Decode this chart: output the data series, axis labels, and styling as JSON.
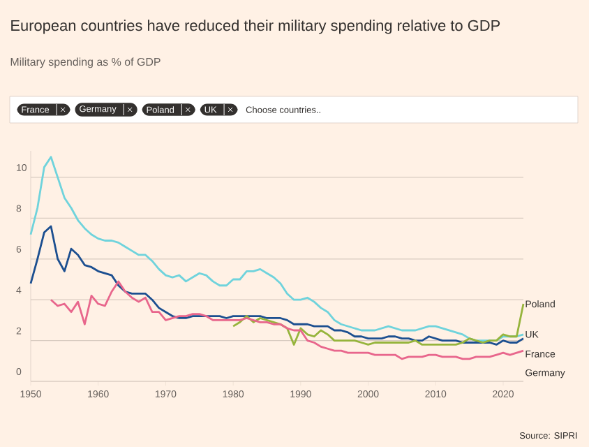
{
  "chart_data": {
    "type": "line",
    "title": "European countries have reduced their military spending relative to GDP",
    "subtitle": "Military spending as % of GDP",
    "annotations": [
      "France",
      "Germany",
      "Poland",
      "UK",
      "Choose countries..",
      "Source: SIPRI"
    ],
    "xlim": [
      1950,
      2023
    ],
    "xticks": [
      1950,
      1960,
      1970,
      1980,
      1990,
      2000,
      2010,
      2020
    ],
    "ylim": [
      0,
      11.3
    ],
    "yticks": [
      0,
      2,
      4,
      6,
      8,
      10
    ],
    "grid": "y",
    "series": [
      {
        "name": "UK",
        "color": "#6fd3dc",
        "x": [
          1950,
          1951,
          1952,
          1953,
          1954,
          1955,
          1956,
          1957,
          1958,
          1959,
          1960,
          1961,
          1962,
          1963,
          1964,
          1965,
          1966,
          1967,
          1968,
          1969,
          1970,
          1971,
          1972,
          1973,
          1974,
          1975,
          1976,
          1977,
          1978,
          1979,
          1980,
          1981,
          1982,
          1983,
          1984,
          1985,
          1986,
          1987,
          1988,
          1989,
          1990,
          1991,
          1992,
          1993,
          1994,
          1995,
          1996,
          1997,
          1998,
          1999,
          2000,
          2001,
          2002,
          2003,
          2004,
          2005,
          2006,
          2007,
          2008,
          2009,
          2010,
          2011,
          2012,
          2013,
          2014,
          2015,
          2016,
          2017,
          2018,
          2019,
          2020,
          2021,
          2022,
          2023
        ],
        "values": [
          7.2,
          8.5,
          10.5,
          11.0,
          10.0,
          9.0,
          8.5,
          7.9,
          7.5,
          7.2,
          7.0,
          6.9,
          6.9,
          6.8,
          6.6,
          6.4,
          6.2,
          6.2,
          5.9,
          5.5,
          5.2,
          5.1,
          5.2,
          4.9,
          5.1,
          5.3,
          5.2,
          4.9,
          4.7,
          4.7,
          5.0,
          5.0,
          5.4,
          5.4,
          5.5,
          5.3,
          5.1,
          4.8,
          4.3,
          4.0,
          4.0,
          4.1,
          3.9,
          3.6,
          3.4,
          3.0,
          2.8,
          2.7,
          2.6,
          2.5,
          2.5,
          2.5,
          2.6,
          2.7,
          2.6,
          2.5,
          2.5,
          2.5,
          2.6,
          2.7,
          2.7,
          2.6,
          2.5,
          2.4,
          2.3,
          2.1,
          2.0,
          2.0,
          2.0,
          2.0,
          2.2,
          2.2,
          2.2,
          2.3
        ]
      },
      {
        "name": "France",
        "color": "#1c4f90",
        "x": [
          1950,
          1951,
          1952,
          1953,
          1954,
          1955,
          1956,
          1957,
          1958,
          1959,
          1960,
          1961,
          1962,
          1963,
          1964,
          1965,
          1966,
          1967,
          1968,
          1969,
          1970,
          1971,
          1972,
          1973,
          1974,
          1975,
          1976,
          1977,
          1978,
          1979,
          1980,
          1981,
          1982,
          1983,
          1984,
          1985,
          1986,
          1987,
          1988,
          1989,
          1990,
          1991,
          1992,
          1993,
          1994,
          1995,
          1996,
          1997,
          1998,
          1999,
          2000,
          2001,
          2002,
          2003,
          2004,
          2005,
          2006,
          2007,
          2008,
          2009,
          2010,
          2011,
          2012,
          2013,
          2014,
          2015,
          2016,
          2017,
          2018,
          2019,
          2020,
          2021,
          2022,
          2023
        ],
        "values": [
          4.8,
          6.0,
          7.3,
          7.6,
          6.0,
          5.4,
          6.5,
          6.2,
          5.7,
          5.6,
          5.4,
          5.3,
          5.2,
          4.7,
          4.4,
          4.3,
          4.3,
          4.3,
          4.0,
          3.6,
          3.4,
          3.2,
          3.1,
          3.1,
          3.2,
          3.2,
          3.2,
          3.2,
          3.2,
          3.1,
          3.2,
          3.2,
          3.2,
          3.2,
          3.2,
          3.1,
          3.1,
          3.1,
          3.0,
          2.8,
          2.8,
          2.8,
          2.7,
          2.7,
          2.7,
          2.5,
          2.5,
          2.4,
          2.2,
          2.2,
          2.1,
          2.1,
          2.1,
          2.2,
          2.2,
          2.1,
          2.1,
          2.0,
          2.0,
          2.2,
          2.1,
          2.0,
          2.0,
          2.0,
          1.9,
          1.9,
          1.9,
          1.9,
          1.9,
          1.8,
          2.0,
          1.9,
          1.9,
          2.1
        ]
      },
      {
        "name": "Poland",
        "color": "#96b43c",
        "x": [
          1980,
          1981,
          1982,
          1983,
          1984,
          1985,
          1986,
          1987,
          1988,
          1989,
          1990,
          1991,
          1992,
          1993,
          1994,
          1995,
          1996,
          1997,
          1998,
          1999,
          2000,
          2001,
          2002,
          2003,
          2004,
          2005,
          2006,
          2007,
          2008,
          2009,
          2010,
          2011,
          2012,
          2013,
          2014,
          2015,
          2016,
          2017,
          2018,
          2019,
          2020,
          2021,
          2022,
          2023
        ],
        "values": [
          2.7,
          2.9,
          3.2,
          2.9,
          3.1,
          3.0,
          2.9,
          2.8,
          2.6,
          1.8,
          2.6,
          2.3,
          2.2,
          2.5,
          2.3,
          2.0,
          2.0,
          2.0,
          2.0,
          1.9,
          1.8,
          1.9,
          1.9,
          1.9,
          1.9,
          1.9,
          1.9,
          2.0,
          1.8,
          1.8,
          1.8,
          1.8,
          1.8,
          1.8,
          1.9,
          2.1,
          2.0,
          1.9,
          2.0,
          2.0,
          2.3,
          2.2,
          2.2,
          3.8
        ]
      },
      {
        "name": "Germany",
        "color": "#e8668c",
        "x": [
          1953,
          1954,
          1955,
          1956,
          1957,
          1958,
          1959,
          1960,
          1961,
          1962,
          1963,
          1964,
          1965,
          1966,
          1967,
          1968,
          1969,
          1970,
          1971,
          1972,
          1973,
          1974,
          1975,
          1976,
          1977,
          1978,
          1979,
          1980,
          1981,
          1982,
          1983,
          1984,
          1985,
          1986,
          1987,
          1988,
          1989,
          1990,
          1991,
          1992,
          1993,
          1994,
          1995,
          1996,
          1997,
          1998,
          1999,
          2000,
          2001,
          2002,
          2003,
          2004,
          2005,
          2006,
          2007,
          2008,
          2009,
          2010,
          2011,
          2012,
          2013,
          2014,
          2015,
          2016,
          2017,
          2018,
          2019,
          2020,
          2021,
          2022,
          2023
        ],
        "values": [
          4.0,
          3.7,
          3.8,
          3.4,
          3.9,
          2.8,
          4.2,
          3.8,
          3.7,
          4.4,
          4.9,
          4.4,
          4.1,
          3.9,
          4.1,
          3.4,
          3.4,
          3.0,
          3.1,
          3.2,
          3.2,
          3.3,
          3.3,
          3.2,
          3.0,
          3.0,
          3.0,
          3.0,
          3.0,
          3.1,
          3.0,
          2.9,
          2.9,
          2.8,
          2.8,
          2.6,
          2.5,
          2.5,
          2.0,
          1.9,
          1.7,
          1.6,
          1.5,
          1.5,
          1.4,
          1.4,
          1.4,
          1.4,
          1.3,
          1.3,
          1.3,
          1.3,
          1.1,
          1.2,
          1.2,
          1.2,
          1.3,
          1.3,
          1.2,
          1.2,
          1.2,
          1.1,
          1.1,
          1.2,
          1.2,
          1.2,
          1.3,
          1.4,
          1.3,
          1.4,
          1.5
        ]
      }
    ]
  }
}
